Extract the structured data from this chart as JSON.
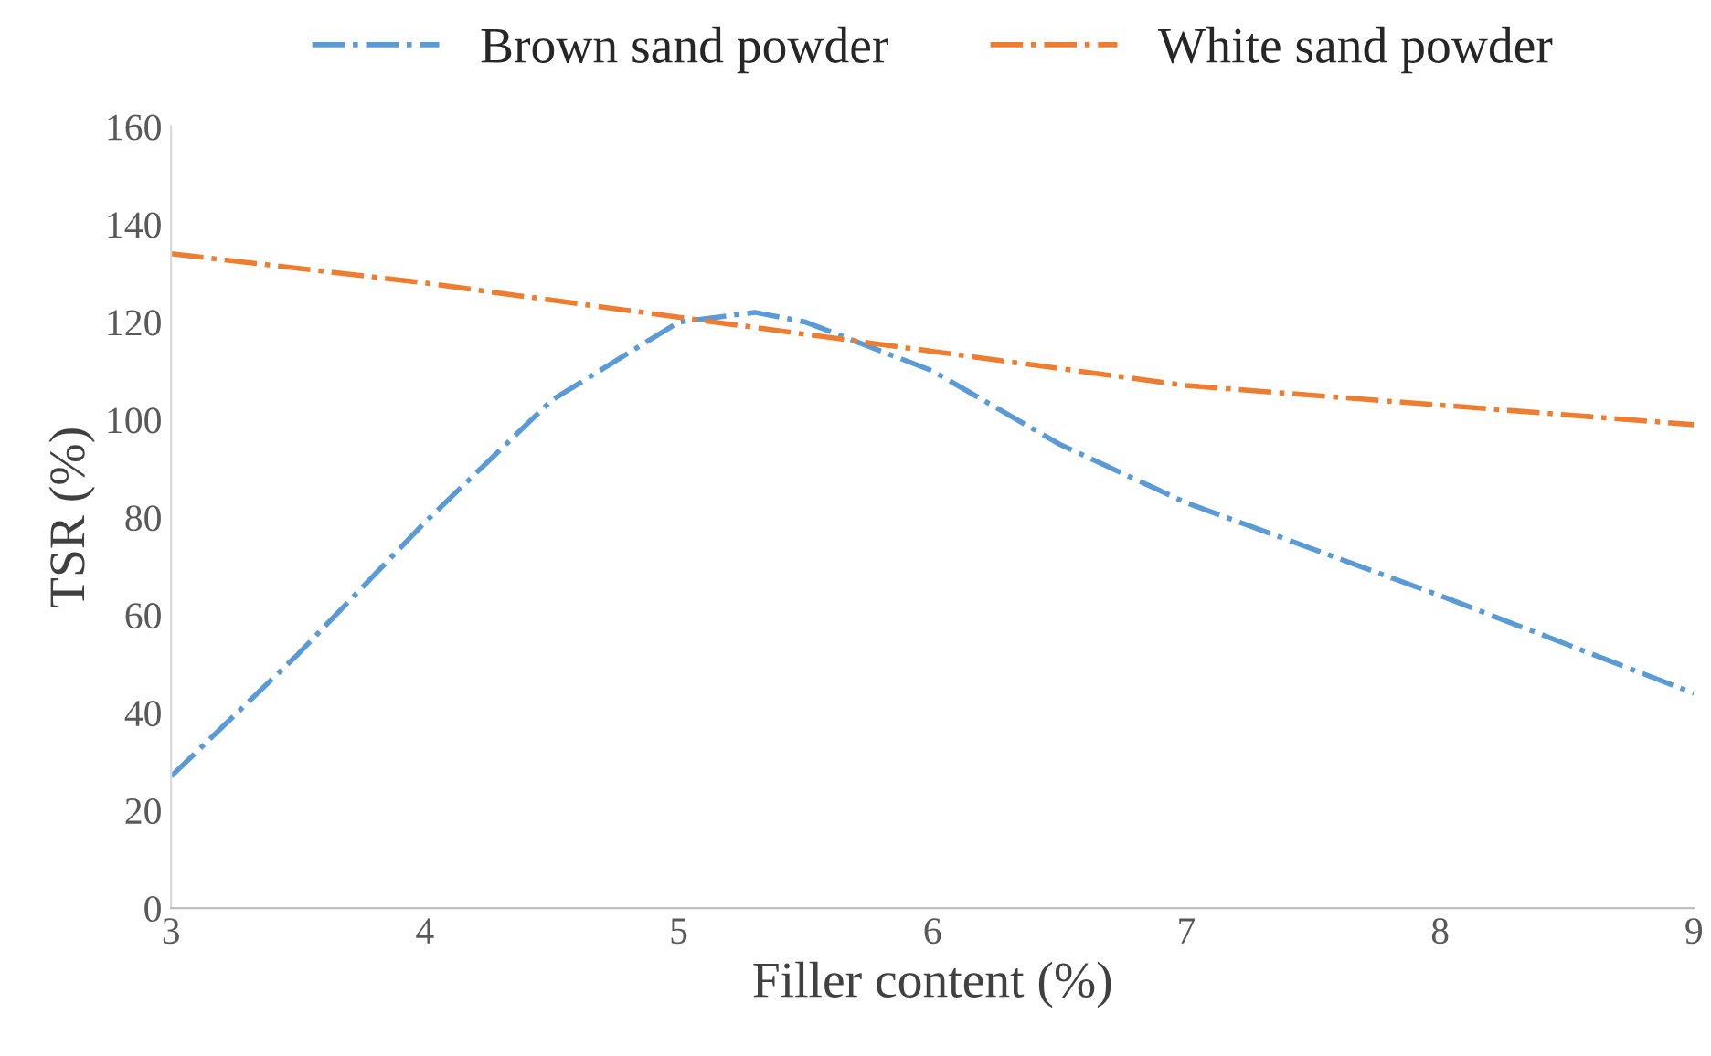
{
  "chart_data": {
    "type": "line",
    "xlabel": "Filler content (%)",
    "ylabel": "TSR (%)",
    "series": [
      {
        "name": "Brown sand powder",
        "color": "#5b9bd5",
        "x": [
          3,
          3.5,
          4,
          4.5,
          5,
          5.3,
          5.5,
          6,
          6.5,
          7,
          8,
          9
        ],
        "values": [
          27,
          52,
          79,
          104,
          120,
          122,
          120,
          110,
          95,
          83,
          64,
          44
        ]
      },
      {
        "name": "White sand powder",
        "color": "#ed7d31",
        "x": [
          3,
          4,
          5,
          6,
          7,
          8,
          9
        ],
        "values": [
          134,
          128,
          121,
          114,
          107,
          103,
          99
        ]
      }
    ],
    "xlim": [
      3,
      9
    ],
    "xticks": [
      3,
      4,
      5,
      6,
      7,
      8,
      9
    ],
    "ylim": [
      0,
      160
    ],
    "yticks": [
      0,
      20,
      40,
      60,
      80,
      100,
      120,
      140,
      160
    ],
    "grid": false,
    "legend": "top",
    "line_style": "dashdot",
    "marker": "none"
  }
}
